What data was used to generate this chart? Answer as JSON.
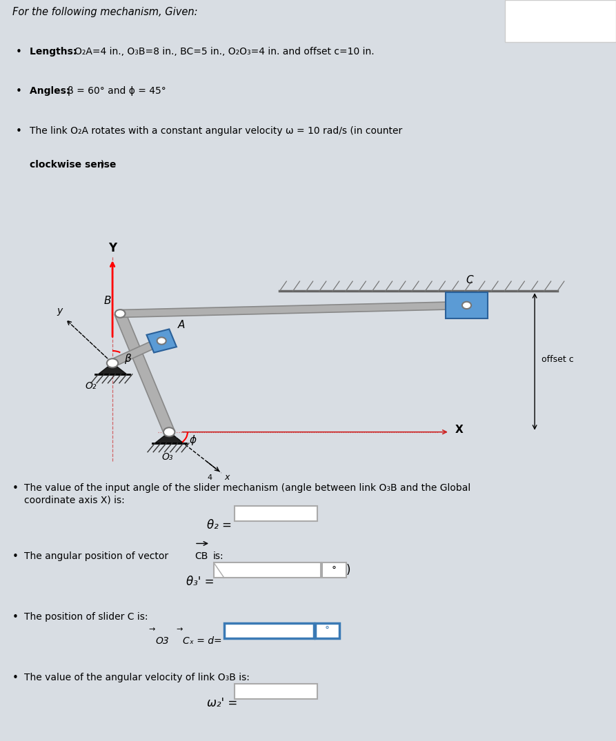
{
  "bg_color": "#d8dde3",
  "diagram_bg": "#e8ecef",
  "link_color": "#b0b0b0",
  "link_edge": "#888888",
  "blue_color": "#5b9bd5",
  "blue_edge": "#2a6099",
  "ground_color": "#1a1a1a",
  "red_color": "#cc2222",
  "title": "For the following mechanism, Given:",
  "b1_bold": "Lengths: ",
  "b1_rest": "O₂A=4 in., O₃B=8 in., BC=5 in., O₂O₃=4 in. and offset c=10 in.",
  "b2_bold": "Angles: ",
  "b2_rest": "β = 60° and ϕ = 45°",
  "b3_bold": "The link O₂A rotates with a constant angular velocity ω = 10 rad/s (in counter ",
  "b3_bold2": "clockwise sense",
  "b3_rest": ")",
  "q1_line1": "The value of the input angle of the slider mechanism (angle between link O₃B and the Global",
  "q1_line2": "coordinate axis X) is:",
  "q2_line": "The angular position of vector ",
  "q2_vec": "CB",
  "q2_end": " is:",
  "q3_line": "The position of slider C is:",
  "q4_line": "The value of the angular velocity of link O₃B is:"
}
